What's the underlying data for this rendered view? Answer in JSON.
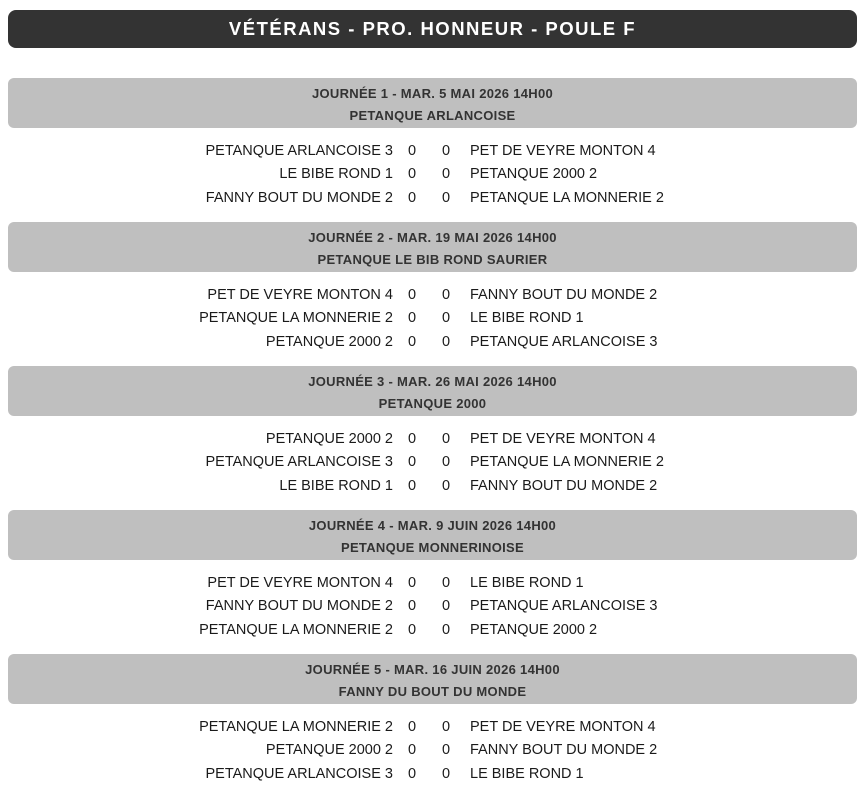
{
  "title": "VÉTÉRANS - PRO. HONNEUR - POULE F",
  "colors": {
    "title_bar_bg": "#333333",
    "title_bar_text": "#ffffff",
    "journee_header_bg": "#bfbfbf",
    "journee_header_text": "#333333",
    "match_text": "#1a1a1a",
    "page_bg": "#ffffff"
  },
  "sections": [
    {
      "header_line1": "JOURNÉE 1 - MAR. 5 MAI 2026 14H00",
      "header_line2": "PETANQUE ARLANCOISE",
      "matches": [
        {
          "home": "PETANQUE ARLANCOISE 3",
          "score_home": "0",
          "score_away": "0",
          "away": "PET DE VEYRE MONTON 4"
        },
        {
          "home": "LE BIBE ROND 1",
          "score_home": "0",
          "score_away": "0",
          "away": "PETANQUE 2000 2"
        },
        {
          "home": "FANNY BOUT DU MONDE 2",
          "score_home": "0",
          "score_away": "0",
          "away": "PETANQUE LA MONNERIE 2"
        }
      ]
    },
    {
      "header_line1": "JOURNÉE 2 - MAR. 19 MAI 2026 14H00",
      "header_line2": "PETANQUE LE BIB ROND SAURIER",
      "matches": [
        {
          "home": "PET DE VEYRE MONTON 4",
          "score_home": "0",
          "score_away": "0",
          "away": "FANNY BOUT DU MONDE 2"
        },
        {
          "home": "PETANQUE LA MONNERIE 2",
          "score_home": "0",
          "score_away": "0",
          "away": "LE BIBE ROND 1"
        },
        {
          "home": "PETANQUE 2000 2",
          "score_home": "0",
          "score_away": "0",
          "away": "PETANQUE ARLANCOISE 3"
        }
      ]
    },
    {
      "header_line1": "JOURNÉE 3 - MAR. 26 MAI 2026 14H00",
      "header_line2": "PETANQUE 2000",
      "matches": [
        {
          "home": "PETANQUE 2000 2",
          "score_home": "0",
          "score_away": "0",
          "away": "PET DE VEYRE MONTON 4"
        },
        {
          "home": "PETANQUE ARLANCOISE 3",
          "score_home": "0",
          "score_away": "0",
          "away": "PETANQUE LA MONNERIE 2"
        },
        {
          "home": "LE BIBE ROND 1",
          "score_home": "0",
          "score_away": "0",
          "away": "FANNY BOUT DU MONDE 2"
        }
      ]
    },
    {
      "header_line1": "JOURNÉE 4 - MAR. 9 JUIN 2026 14H00",
      "header_line2": "PETANQUE MONNERINOISE",
      "matches": [
        {
          "home": "PET DE VEYRE MONTON 4",
          "score_home": "0",
          "score_away": "0",
          "away": "LE BIBE ROND 1"
        },
        {
          "home": "FANNY BOUT DU MONDE 2",
          "score_home": "0",
          "score_away": "0",
          "away": "PETANQUE ARLANCOISE 3"
        },
        {
          "home": "PETANQUE LA MONNERIE 2",
          "score_home": "0",
          "score_away": "0",
          "away": "PETANQUE 2000 2"
        }
      ]
    },
    {
      "header_line1": "JOURNÉE 5 - MAR. 16 JUIN 2026 14H00",
      "header_line2": "FANNY DU BOUT DU MONDE",
      "matches": [
        {
          "home": "PETANQUE LA MONNERIE 2",
          "score_home": "0",
          "score_away": "0",
          "away": "PET DE VEYRE MONTON 4"
        },
        {
          "home": "PETANQUE 2000 2",
          "score_home": "0",
          "score_away": "0",
          "away": "FANNY BOUT DU MONDE 2"
        },
        {
          "home": "PETANQUE ARLANCOISE 3",
          "score_home": "0",
          "score_away": "0",
          "away": "LE BIBE ROND 1"
        }
      ]
    }
  ]
}
